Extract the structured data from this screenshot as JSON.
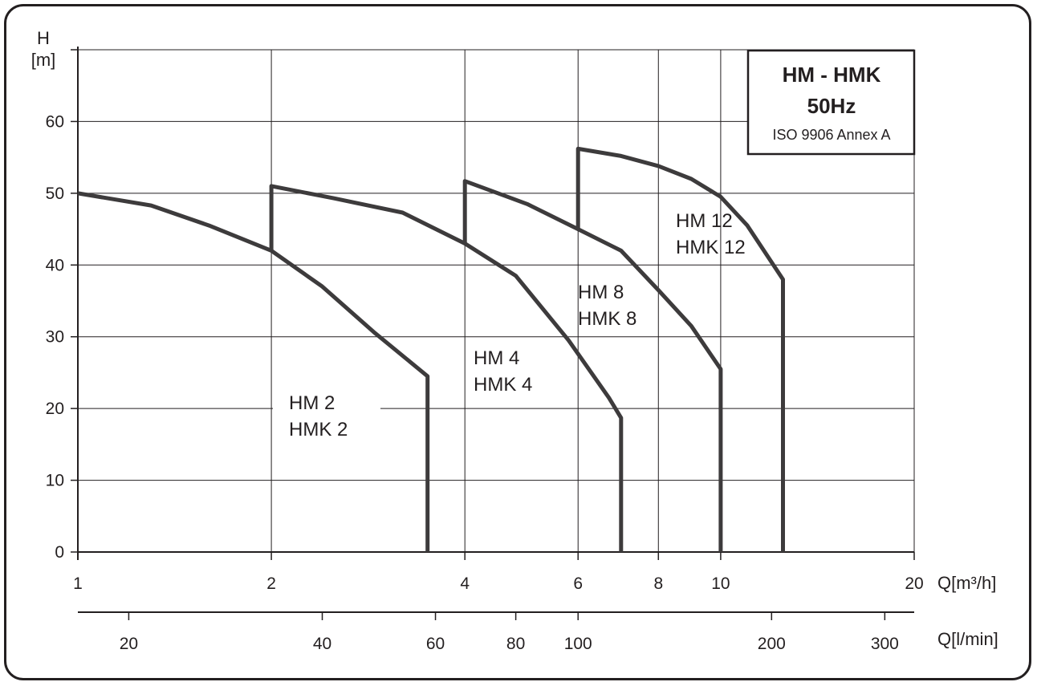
{
  "chart_data": {
    "type": "line",
    "title": "HM - HMK",
    "subtitle": "50Hz",
    "note": "ISO 9906 Annex A",
    "ylabel_top": "H",
    "ylabel_unit": "[m]",
    "xlabel": "Q[m³/h]",
    "xlabel2": "Q[l/min]",
    "x_scale": "log",
    "xlim": [
      1,
      20
    ],
    "ylim": [
      0,
      70
    ],
    "grid": true,
    "y_ticks": [
      0,
      10,
      20,
      30,
      40,
      50,
      60
    ],
    "x_ticks": [
      1,
      2,
      4,
      6,
      8,
      10,
      20
    ],
    "x2_ticks": [
      20,
      40,
      60,
      80,
      100,
      200,
      300
    ],
    "series": [
      {
        "name": "HM 2",
        "name2": "HMK 2",
        "points": [
          [
            1,
            50
          ],
          [
            1.3,
            48.3
          ],
          [
            1.6,
            45.5
          ],
          [
            2.0,
            42
          ],
          [
            2.4,
            37
          ],
          [
            2.9,
            30.5
          ],
          [
            3.5,
            24.5
          ],
          [
            3.5,
            0
          ]
        ]
      },
      {
        "name": "HM 4",
        "name2": "HMK 4",
        "points": [
          [
            2,
            42
          ],
          [
            2,
            51
          ],
          [
            2.5,
            49.3
          ],
          [
            3.2,
            47.3
          ],
          [
            4,
            43
          ],
          [
            4.8,
            38.5
          ],
          [
            5.8,
            29.5
          ],
          [
            6.7,
            21.5
          ],
          [
            7,
            18.7
          ],
          [
            7,
            0
          ]
        ]
      },
      {
        "name": "HM 8",
        "name2": "HMK 8",
        "points": [
          [
            4,
            43
          ],
          [
            4,
            51.7
          ],
          [
            5,
            48.5
          ],
          [
            6,
            45
          ],
          [
            7,
            42
          ],
          [
            8,
            36.5
          ],
          [
            9,
            31.5
          ],
          [
            10,
            25.5
          ],
          [
            10,
            0
          ]
        ]
      },
      {
        "name": "HM 12",
        "name2": "HMK 12",
        "points": [
          [
            6,
            45
          ],
          [
            6,
            56.2
          ],
          [
            7,
            55.2
          ],
          [
            8,
            53.8
          ],
          [
            9,
            52
          ],
          [
            10,
            49.5
          ],
          [
            11,
            45.5
          ],
          [
            12.5,
            38
          ],
          [
            12.5,
            0
          ]
        ]
      }
    ]
  }
}
